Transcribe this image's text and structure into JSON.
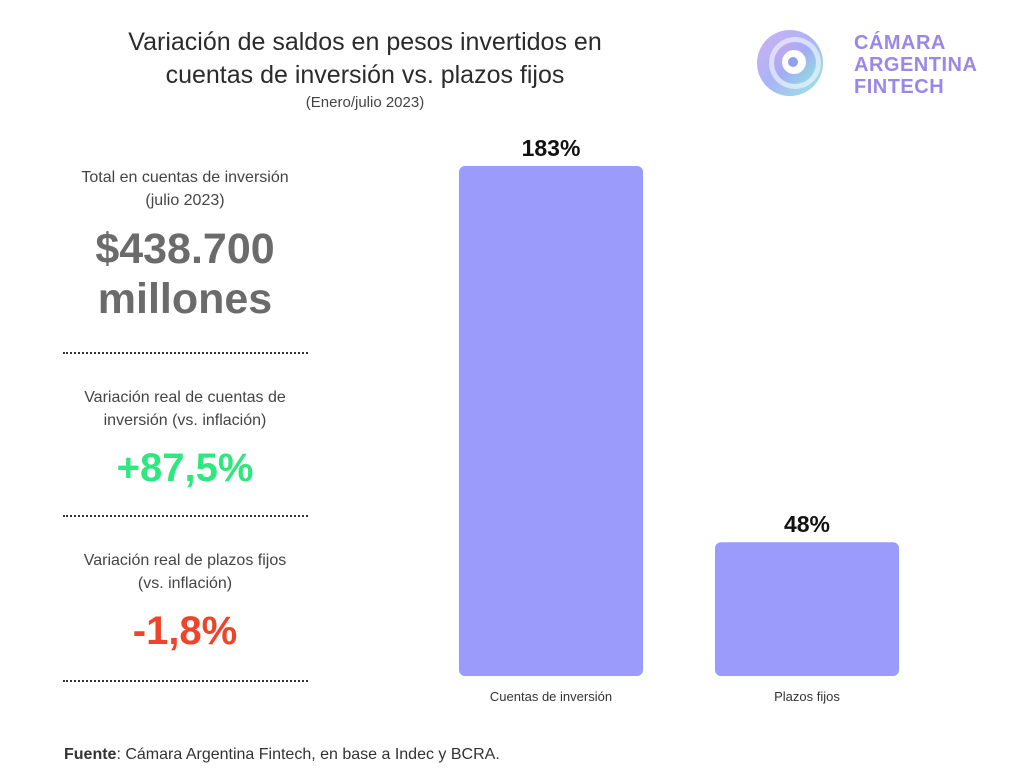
{
  "header": {
    "title_line1": "Variación de saldos en pesos invertidos en",
    "title_line2": "cuentas de inversión vs. plazos fijos",
    "subtitle": "(Enero/julio 2023)"
  },
  "logo": {
    "line1": "CÁMARA",
    "line2": "ARGENTINA",
    "line3": "FINTECH",
    "color": "#9a87e8"
  },
  "stats": {
    "total_label_line1": "Total en cuentas de inversión",
    "total_label_line2": "(julio 2023)",
    "total_value_line1": "$438.700",
    "total_value_line2": "millones",
    "investment_label_line1": "Variación real de cuentas de",
    "investment_label_line2": "inversión (vs. inflación)",
    "investment_value": "+87,5%",
    "fixed_label_line1": "Variación real de plazos fijos",
    "fixed_label_line2": "(vs. inflación)",
    "fixed_value": "-1,8%",
    "colors": {
      "positive": "#2ee87f",
      "negative": "#f0442a",
      "neutral": "#6b6b6b"
    }
  },
  "chart_data": {
    "type": "bar",
    "categories": [
      "Cuentas de inversión",
      "Plazos fijos"
    ],
    "values": [
      183,
      48
    ],
    "value_labels": [
      "183%",
      "48%"
    ],
    "bar_color": "#9b9bfb",
    "ylim": [
      0,
      183
    ],
    "grid": false
  },
  "footer": {
    "source_label": "Fuente",
    "source_text": ": Cámara Argentina Fintech, en base a Indec y BCRA."
  }
}
